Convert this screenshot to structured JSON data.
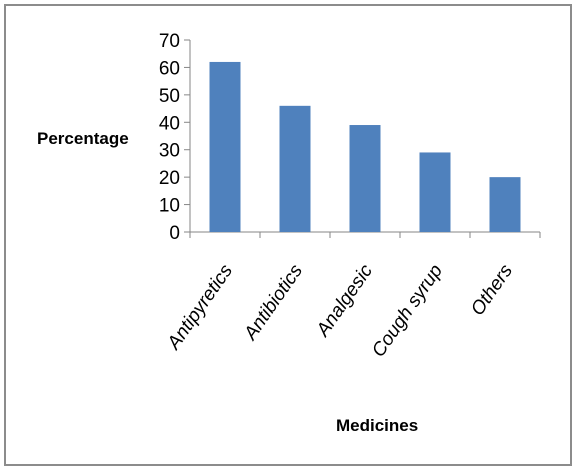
{
  "chart_data": {
    "type": "bar",
    "categories": [
      "Antipyretics",
      "Antibiotics",
      "Analgesic",
      "Cough syrup",
      "Others"
    ],
    "values": [
      62,
      46,
      39,
      29,
      20
    ],
    "title": "",
    "xlabel": "Medicines",
    "ylabel": "Percentage",
    "ylim": [
      0,
      70
    ],
    "yticks": [
      "0",
      "10",
      "20",
      "30",
      "40",
      "50",
      "60",
      "70"
    ],
    "grid": false,
    "legend": "none",
    "bar_color": "#4f81bd"
  }
}
